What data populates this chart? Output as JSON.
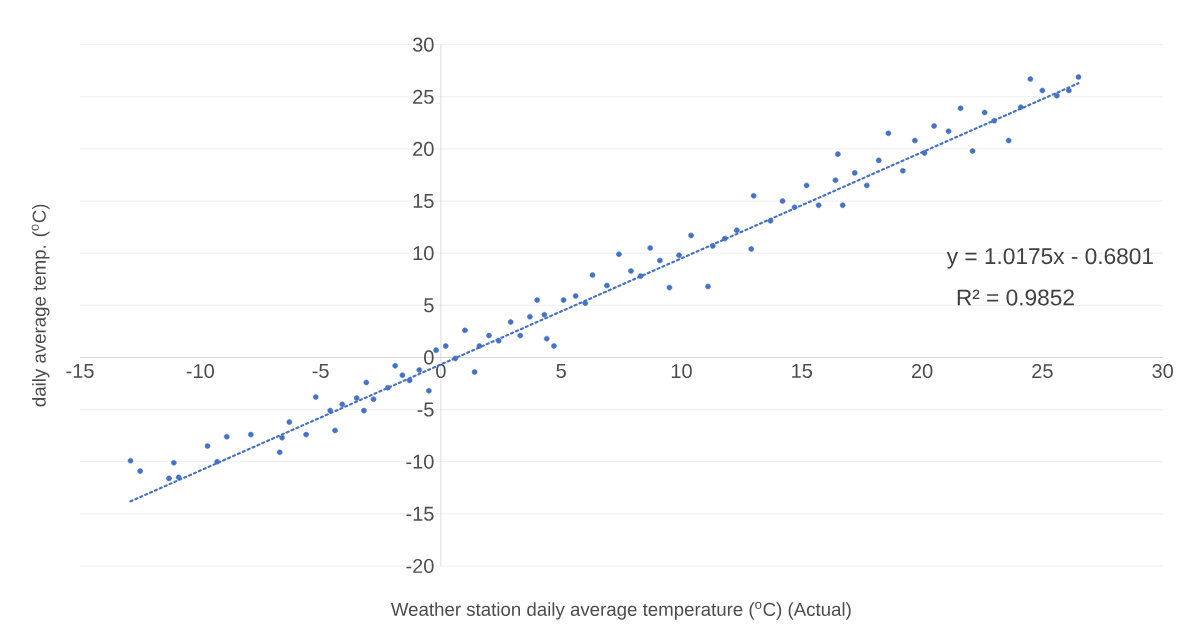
{
  "chart_data": {
    "type": "scatter",
    "xlabel": "Weather station daily average temperature ($^{o}$C) (Actual)",
    "ylabel": "daily average  temp. ($^{o}$C)",
    "annotations": [
      "y = 1.0175x - 0.6801",
      "R² = 0.9852"
    ],
    "xlim": [
      -15,
      30
    ],
    "ylim": [
      -20,
      30
    ],
    "xticks": [
      -15,
      -10,
      -5,
      0,
      5,
      10,
      15,
      20,
      25,
      30
    ],
    "yticks": [
      -20,
      -15,
      -10,
      -5,
      0,
      5,
      10,
      15,
      20,
      25,
      30
    ],
    "grid": "y",
    "series": [
      {
        "color": "#4472c4",
        "marker": "circle",
        "x": [
          -12.9,
          -12.5,
          -11.1,
          -11.3,
          -10.9,
          -9.7,
          -9.3,
          -8.9,
          -7.9,
          -6.7,
          -6.6,
          -6.3,
          -5.6,
          -5.2,
          -4.6,
          -4.4,
          -4.1,
          -3.5,
          -3.2,
          -3.1,
          -2.8,
          -2.2,
          -1.9,
          -1.6,
          -1.3,
          -0.9,
          -0.5,
          -0.2,
          0.2,
          0.6,
          1.0,
          1.4,
          1.6,
          2.0,
          2.4,
          2.9,
          3.3,
          3.7,
          4.0,
          4.3,
          4.4,
          4.7,
          5.1,
          5.6,
          6.0,
          6.3,
          6.9,
          7.4,
          7.9,
          8.3,
          8.7,
          9.1,
          9.5,
          9.9,
          10.4,
          11.1,
          11.3,
          11.8,
          12.3,
          12.9,
          13.0,
          13.7,
          14.2,
          14.7,
          15.2,
          15.7,
          16.4,
          16.5,
          16.7,
          17.2,
          17.7,
          18.2,
          18.6,
          19.2,
          19.7,
          20.1,
          20.5,
          21.1,
          21.6,
          22.1,
          22.6,
          23.0,
          23.6,
          24.1,
          24.5,
          25.0,
          25.6,
          26.1,
          26.5
        ],
        "values": [
          -9.9,
          -10.9,
          -10.1,
          -11.6,
          -11.5,
          -8.5,
          -10.0,
          -7.6,
          -7.4,
          -9.1,
          -7.7,
          -6.2,
          -7.4,
          -3.8,
          -5.1,
          -7.0,
          -4.5,
          -3.9,
          -5.1,
          -2.4,
          -4.0,
          -2.9,
          -0.8,
          -1.7,
          -2.2,
          -1.2,
          -3.2,
          0.7,
          1.1,
          -0.1,
          2.6,
          -1.4,
          1.1,
          2.1,
          1.6,
          3.4,
          2.1,
          3.9,
          5.5,
          4.1,
          1.8,
          1.1,
          5.5,
          5.9,
          5.2,
          7.9,
          6.9,
          9.9,
          8.3,
          7.8,
          10.5,
          9.3,
          6.7,
          9.8,
          11.7,
          6.8,
          10.7,
          11.4,
          12.2,
          10.4,
          15.5,
          13.1,
          15.0,
          14.4,
          16.5,
          14.6,
          17.0,
          19.5,
          14.6,
          17.7,
          16.5,
          18.9,
          21.5,
          17.9,
          20.8,
          19.6,
          22.2,
          21.7,
          23.9,
          19.8,
          23.5,
          22.7,
          20.8,
          24.0,
          26.7,
          25.6,
          25.1,
          25.6,
          26.9
        ]
      },
      {
        "type": "line",
        "color": "#4472c4",
        "marker": "none",
        "line_style": "dotted",
        "x": [
          -12.9,
          26.5
        ],
        "values": [
          -13.8,
          26.3
        ]
      }
    ]
  }
}
